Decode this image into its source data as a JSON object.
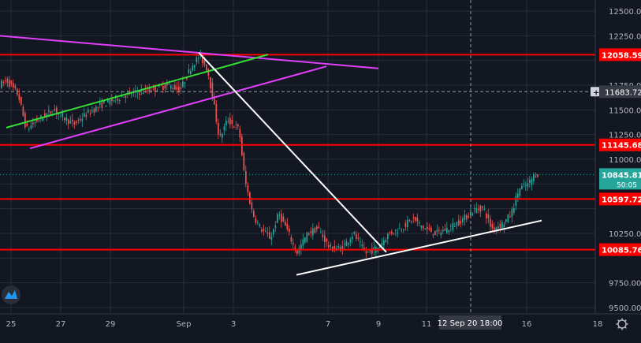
{
  "theme": {
    "background": "#131722",
    "grid": "#2a2e39",
    "axis_text": "#b2b5be",
    "candle_up": "#26a69a",
    "candle_down": "#ef5350",
    "level_line": "#ff0000",
    "trend_white": "#ffffff",
    "channel_green": "#33dd33",
    "channel_magenta": "#e040fb"
  },
  "chart_data": {
    "type": "candlestick",
    "instrument_hint": "BTC",
    "x_axis": {
      "tick_labels": [
        "25",
        "27",
        "29",
        "Sep",
        "3",
        "7",
        "9",
        "11",
        "16",
        "18"
      ],
      "crosshair_label": "12 Sep 20   18:00"
    },
    "y_axis": {
      "range": [
        9400,
        12600
      ],
      "tick_labels": [
        "12500.00",
        "12250.00",
        "11750.00",
        "11500.00",
        "11250.00",
        "11000.00",
        "10250.00",
        "9750.00",
        "9500.00"
      ]
    },
    "levels": [
      {
        "label": "12058.59",
        "value": 12058.59
      },
      {
        "label": "11145.68",
        "value": 11145.68
      },
      {
        "label": "10597.72",
        "value": 10597.72
      },
      {
        "label": "10085.76",
        "value": 10085.76
      }
    ],
    "crosshair_price": {
      "label": "11683.72",
      "value": 11683.72
    },
    "last_price": {
      "label": "10845.81",
      "value": 10845.81,
      "countdown": "50:05"
    },
    "trendlines": [
      {
        "name": "descending-resistance-magenta",
        "color": "magenta",
        "from": {
          "x": 0,
          "y": 12250
        },
        "to": {
          "x": 480,
          "y": 11920
        }
      },
      {
        "name": "channel-top-green",
        "color": "green",
        "from": {
          "x": 8,
          "y": 11320
        },
        "to": {
          "x": 340,
          "y": 12060
        }
      },
      {
        "name": "channel-bottom-magenta",
        "color": "magenta",
        "from": {
          "x": 38,
          "y": 11110
        },
        "to": {
          "x": 414,
          "y": 11940
        }
      },
      {
        "name": "drop-line-white",
        "color": "white",
        "from": {
          "x": 252,
          "y": 12080
        },
        "to": {
          "x": 490,
          "y": 10060
        }
      },
      {
        "name": "support-line-white",
        "color": "white",
        "from": {
          "x": 376,
          "y": 9830
        },
        "to": {
          "x": 687,
          "y": 10380
        }
      }
    ]
  },
  "ui": {
    "logo_label": "TV",
    "settings_icon": "gear-icon"
  }
}
